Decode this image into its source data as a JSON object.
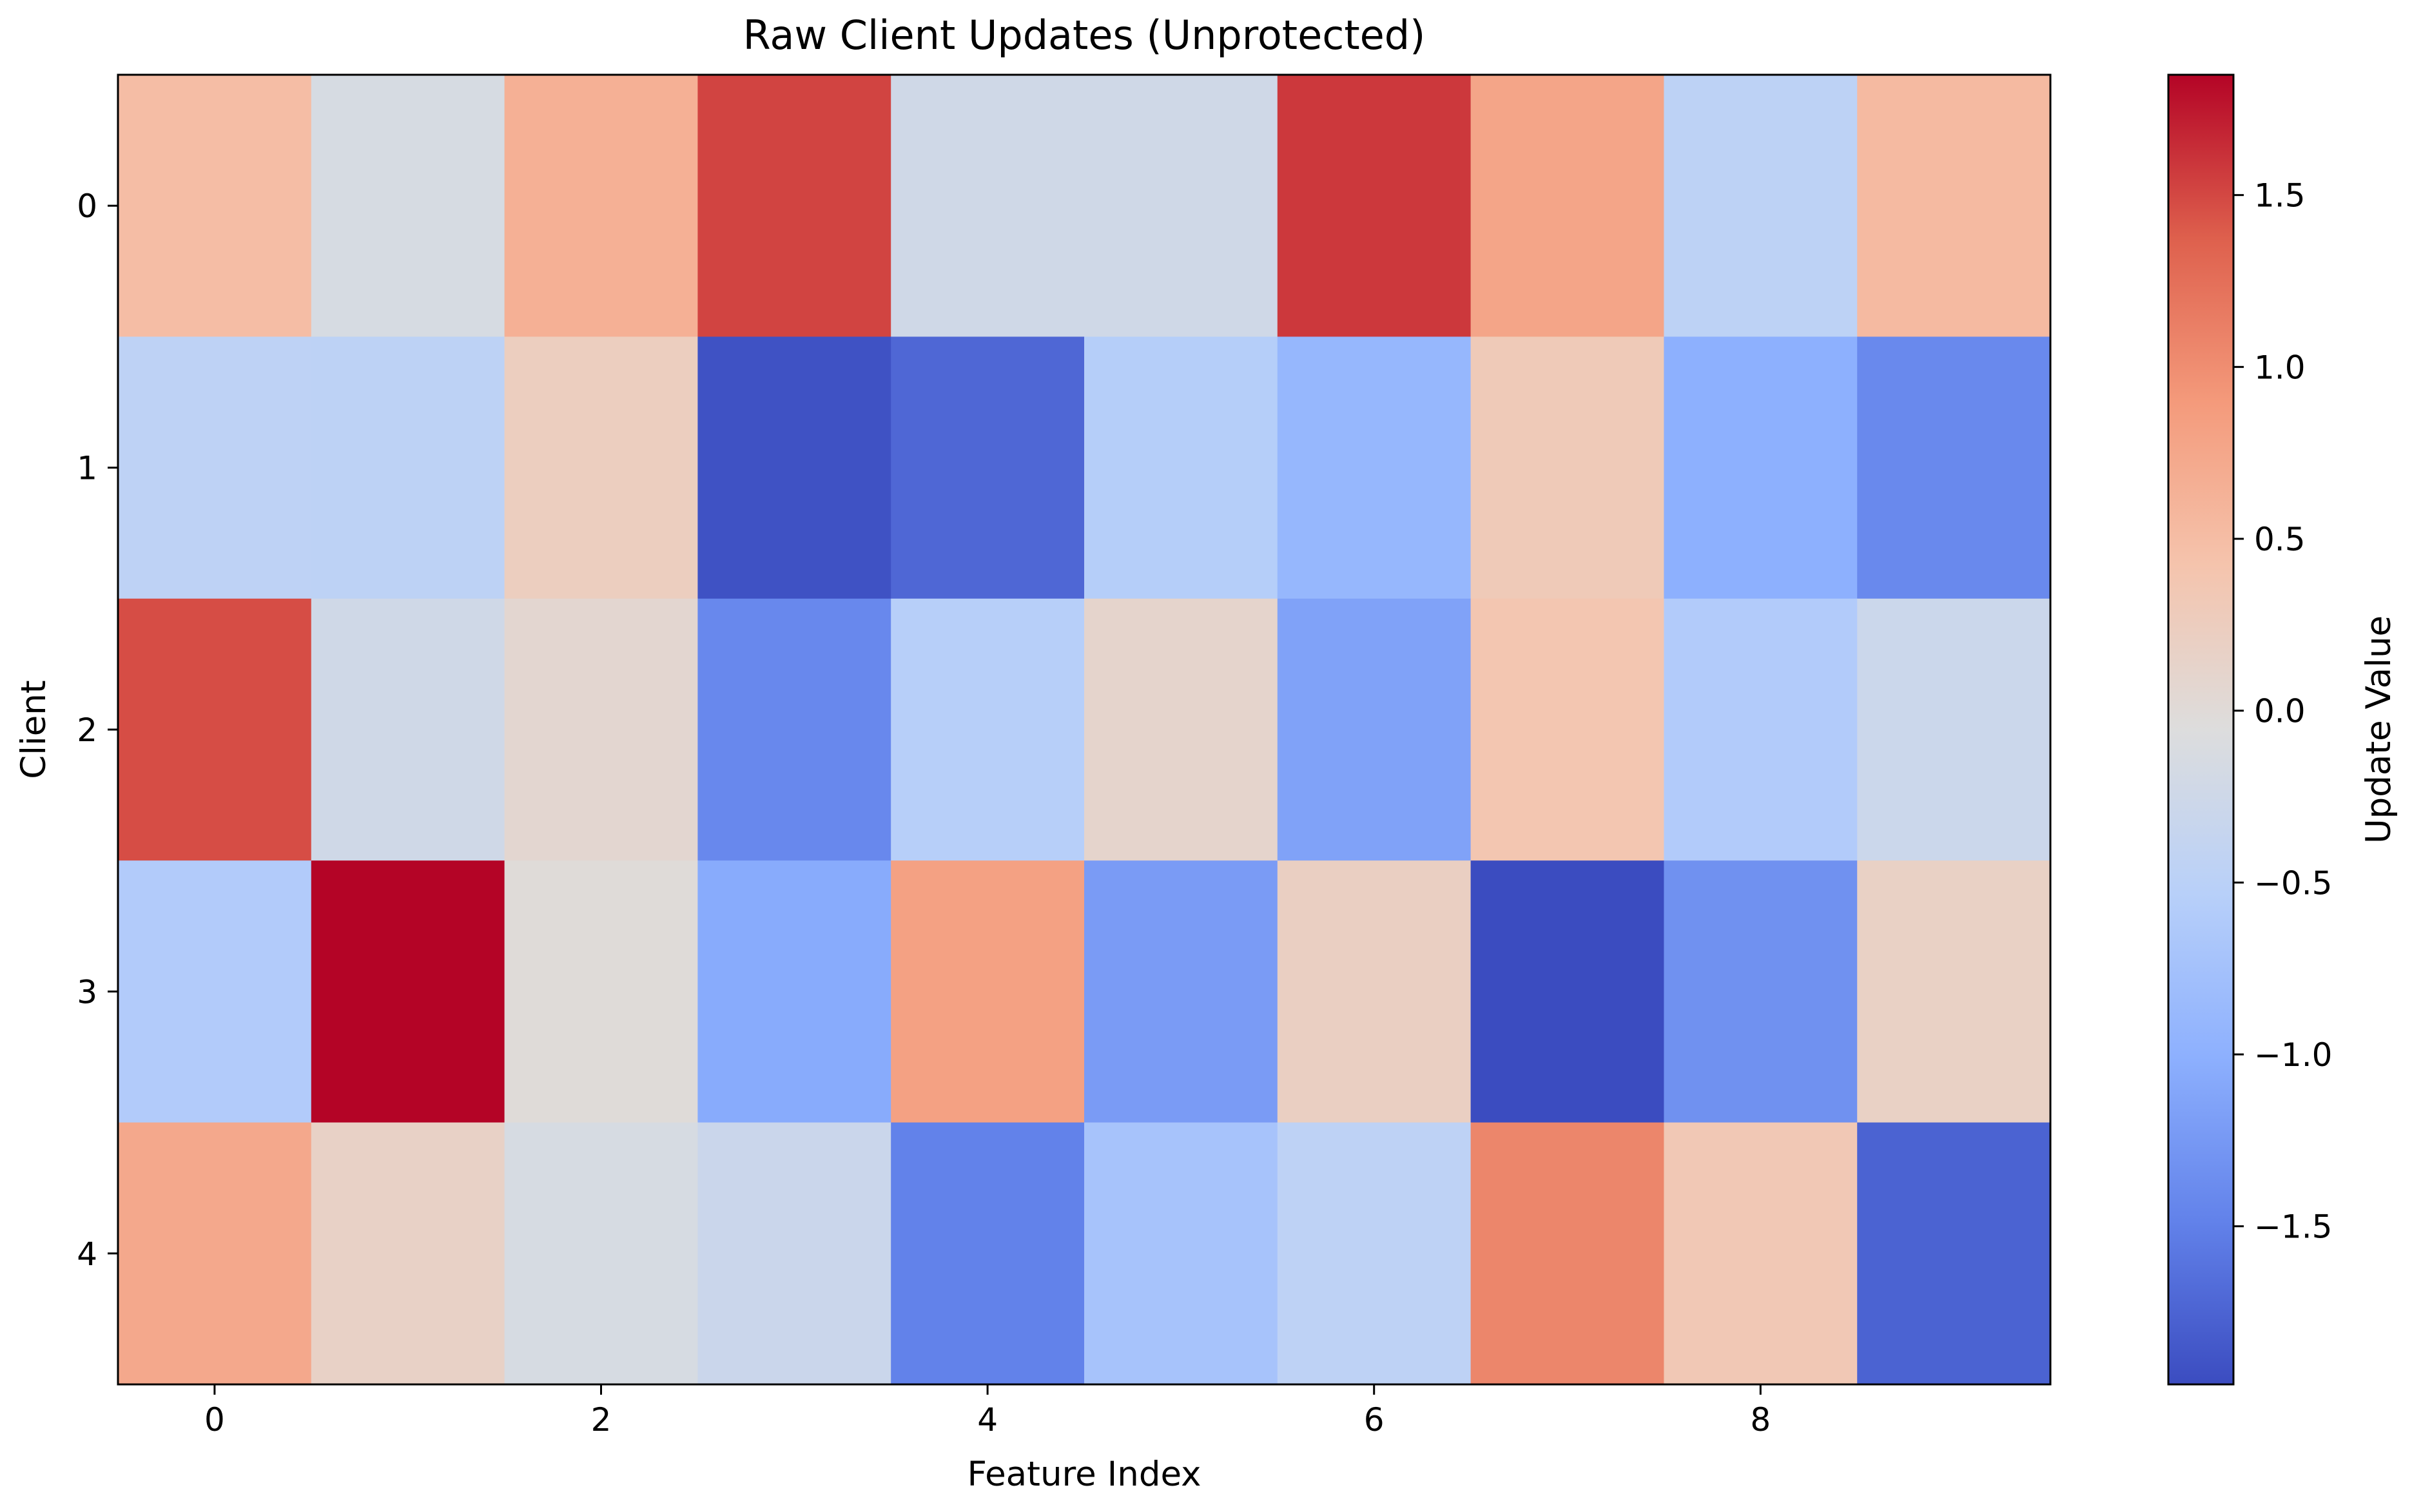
{
  "chart_data": {
    "type": "heatmap",
    "title": "Raw Client Updates (Unprotected)",
    "xlabel": "Feature Index",
    "ylabel": "Client",
    "colorbar_label": "Update Value",
    "colormap": "coolwarm",
    "x_categories": [
      0,
      1,
      2,
      3,
      4,
      5,
      6,
      7,
      8,
      9
    ],
    "y_categories": [
      0,
      1,
      2,
      3,
      4
    ],
    "x_tick_labels": [
      "0",
      "2",
      "4",
      "6",
      "8"
    ],
    "x_tick_values": [
      0,
      2,
      4,
      6,
      8
    ],
    "y_tick_labels": [
      "0",
      "1",
      "2",
      "3",
      "4"
    ],
    "y_tick_values": [
      0,
      1,
      2,
      3,
      4
    ],
    "colorbar_ticks": [
      1.5,
      1.0,
      0.5,
      0.0,
      -0.5,
      -1.0,
      -1.5
    ],
    "colorbar_tick_labels": [
      "1.5",
      "1.0",
      "0.5",
      "0.0",
      "−0.5",
      "−1.0",
      "−1.5"
    ],
    "vmin": -1.96,
    "vmax": 1.85,
    "values": [
      [
        0.5,
        -0.14,
        0.65,
        1.52,
        -0.23,
        -0.23,
        1.58,
        0.77,
        -0.47,
        0.54
      ],
      [
        -0.46,
        -0.47,
        0.24,
        -1.91,
        -1.72,
        -0.56,
        -0.91,
        0.31,
        -1.01,
        -1.41
      ],
      [
        1.47,
        -0.23,
        0.07,
        -1.42,
        -0.54,
        0.11,
        -1.15,
        0.38,
        -0.6,
        -0.29
      ],
      [
        -0.6,
        1.85,
        -0.01,
        -1.06,
        0.82,
        -1.22,
        0.21,
        -1.96,
        -1.33,
        0.18
      ],
      [
        0.74,
        0.17,
        -0.14,
        -0.3,
        -1.48,
        -0.72,
        -0.46,
        1.06,
        0.34,
        -1.76
      ]
    ]
  }
}
